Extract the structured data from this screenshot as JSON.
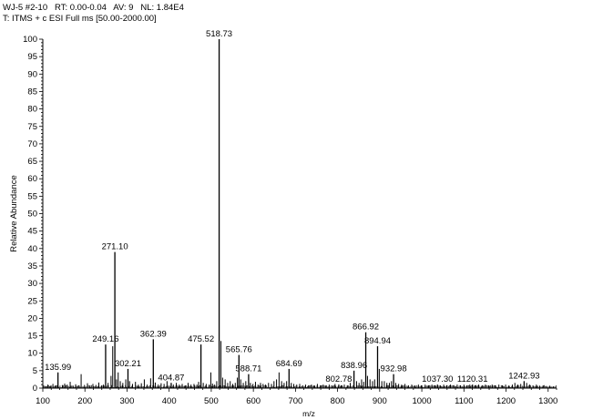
{
  "header": {
    "line1": "WJ-5 #2-10   RT: 0.00-0.04   AV: 9   NL: 1.84E4",
    "line2": "T: ITMS + c ESI Full ms [50.00-2000.00]"
  },
  "chart_data": {
    "type": "bar",
    "xlabel": "m/z",
    "ylabel": "Relative Abundance",
    "xlim": [
      100,
      1320
    ],
    "ylim": [
      0,
      100
    ],
    "xticks": [
      100,
      200,
      300,
      400,
      500,
      600,
      700,
      800,
      900,
      1000,
      1100,
      1200,
      1300
    ],
    "yticks": [
      0,
      5,
      10,
      15,
      20,
      25,
      30,
      35,
      40,
      45,
      50,
      55,
      60,
      65,
      70,
      75,
      80,
      85,
      90,
      95,
      100
    ],
    "labeled_peaks": [
      {
        "mz": 135.99,
        "label": "135.99",
        "intensity": 4.5
      },
      {
        "mz": 249.16,
        "label": "249.16",
        "intensity": 12.5
      },
      {
        "mz": 271.1,
        "label": "271.10",
        "intensity": 39.0
      },
      {
        "mz": 302.21,
        "label": "302.21",
        "intensity": 5.5
      },
      {
        "mz": 362.39,
        "label": "362.39",
        "intensity": 14.0
      },
      {
        "mz": 404.87,
        "label": "404.87",
        "intensity": 1.5
      },
      {
        "mz": 475.52,
        "label": "475.52",
        "intensity": 12.5
      },
      {
        "mz": 518.73,
        "label": "518.73",
        "intensity": 100.0
      },
      {
        "mz": 565.76,
        "label": "565.76",
        "intensity": 9.5
      },
      {
        "mz": 588.71,
        "label": "588.71",
        "intensity": 4.0
      },
      {
        "mz": 684.69,
        "label": "684.69",
        "intensity": 5.5
      },
      {
        "mz": 802.78,
        "label": "802.78",
        "intensity": 1.0
      },
      {
        "mz": 838.96,
        "label": "838.96",
        "intensity": 5.0
      },
      {
        "mz": 866.92,
        "label": "866.92",
        "intensity": 16.0
      },
      {
        "mz": 894.94,
        "label": "894.94",
        "intensity": 12.0
      },
      {
        "mz": 932.98,
        "label": "932.98",
        "intensity": 4.0
      },
      {
        "mz": 1037.3,
        "label": "1037.30",
        "intensity": 1.0
      },
      {
        "mz": 1120.31,
        "label": "1120.31",
        "intensity": 1.0
      },
      {
        "mz": 1242.93,
        "label": "1242.93",
        "intensity": 2.0
      }
    ],
    "unlabeled_peaks": [
      [
        107,
        0.6
      ],
      [
        112,
        1.0
      ],
      [
        118,
        0.7
      ],
      [
        124,
        1.2
      ],
      [
        130,
        0.8
      ],
      [
        147,
        0.9
      ],
      [
        152,
        1.3
      ],
      [
        158,
        1.0
      ],
      [
        165,
        1.8
      ],
      [
        172,
        0.7
      ],
      [
        178,
        1.1
      ],
      [
        186,
        0.8
      ],
      [
        191,
        4.0
      ],
      [
        199,
        0.9
      ],
      [
        206,
        1.4
      ],
      [
        212,
        0.8
      ],
      [
        219,
        1.2
      ],
      [
        226,
        0.9
      ],
      [
        233,
        1.6
      ],
      [
        240,
        0.8
      ],
      [
        244,
        1.0
      ],
      [
        255,
        1.5
      ],
      [
        262,
        3.5
      ],
      [
        266,
        12.0
      ],
      [
        275,
        2.5
      ],
      [
        279,
        4.5
      ],
      [
        284,
        2.0
      ],
      [
        290,
        1.5
      ],
      [
        297,
        2.5
      ],
      [
        306,
        2.0
      ],
      [
        313,
        1.2
      ],
      [
        320,
        1.8
      ],
      [
        327,
        1.0
      ],
      [
        334,
        1.4
      ],
      [
        341,
        2.5
      ],
      [
        348,
        1.0
      ],
      [
        356,
        2.8
      ],
      [
        367,
        1.6
      ],
      [
        374,
        1.0
      ],
      [
        381,
        1.4
      ],
      [
        388,
        1.2
      ],
      [
        395,
        2.0
      ],
      [
        410,
        1.0
      ],
      [
        417,
        1.5
      ],
      [
        424,
        1.0
      ],
      [
        431,
        1.2
      ],
      [
        438,
        0.8
      ],
      [
        445,
        1.5
      ],
      [
        452,
        1.0
      ],
      [
        459,
        1.2
      ],
      [
        466,
        1.0
      ],
      [
        470,
        1.8
      ],
      [
        481,
        1.5
      ],
      [
        488,
        1.2
      ],
      [
        495,
        1.0
      ],
      [
        499,
        4.5
      ],
      [
        503,
        1.3
      ],
      [
        508,
        1.0
      ],
      [
        513,
        2.0
      ],
      [
        523,
        13.5
      ],
      [
        527,
        3.0
      ],
      [
        533,
        2.5
      ],
      [
        539,
        1.5
      ],
      [
        545,
        2.0
      ],
      [
        551,
        1.2
      ],
      [
        557,
        1.5
      ],
      [
        562,
        3.0
      ],
      [
        570,
        2.5
      ],
      [
        576,
        1.5
      ],
      [
        582,
        2.0
      ],
      [
        593,
        1.5
      ],
      [
        599,
        1.2
      ],
      [
        605,
        1.8
      ],
      [
        611,
        1.0
      ],
      [
        617,
        1.5
      ],
      [
        623,
        1.2
      ],
      [
        629,
        1.0
      ],
      [
        636,
        1.5
      ],
      [
        643,
        1.2
      ],
      [
        649,
        2.0
      ],
      [
        655,
        2.5
      ],
      [
        661,
        4.5
      ],
      [
        667,
        2.0
      ],
      [
        673,
        1.5
      ],
      [
        679,
        2.0
      ],
      [
        690,
        1.5
      ],
      [
        696,
        1.2
      ],
      [
        703,
        1.0
      ],
      [
        710,
        1.2
      ],
      [
        717,
        0.8
      ],
      [
        724,
        1.0
      ],
      [
        731,
        0.8
      ],
      [
        738,
        1.0
      ],
      [
        745,
        0.8
      ],
      [
        752,
        1.2
      ],
      [
        759,
        0.8
      ],
      [
        766,
        1.0
      ],
      [
        773,
        0.8
      ],
      [
        780,
        1.0
      ],
      [
        787,
        0.8
      ],
      [
        794,
        1.2
      ],
      [
        809,
        0.8
      ],
      [
        816,
        1.0
      ],
      [
        823,
        0.8
      ],
      [
        830,
        1.5
      ],
      [
        845,
        2.0
      ],
      [
        851,
        1.5
      ],
      [
        857,
        2.5
      ],
      [
        862,
        1.8
      ],
      [
        871,
        3.5
      ],
      [
        877,
        2.5
      ],
      [
        883,
        2.0
      ],
      [
        888,
        2.5
      ],
      [
        899,
        5.5
      ],
      [
        905,
        2.0
      ],
      [
        911,
        2.0
      ],
      [
        917,
        1.5
      ],
      [
        923,
        1.5
      ],
      [
        928,
        2.0
      ],
      [
        938,
        1.5
      ],
      [
        945,
        1.2
      ],
      [
        952,
        1.0
      ],
      [
        960,
        1.2
      ],
      [
        968,
        0.8
      ],
      [
        976,
        1.0
      ],
      [
        984,
        0.8
      ],
      [
        992,
        1.0
      ],
      [
        1000,
        0.8
      ],
      [
        1008,
        1.0
      ],
      [
        1016,
        0.8
      ],
      [
        1024,
        1.0
      ],
      [
        1031,
        0.8
      ],
      [
        1044,
        0.8
      ],
      [
        1052,
        1.0
      ],
      [
        1060,
        0.8
      ],
      [
        1068,
        1.0
      ],
      [
        1076,
        0.8
      ],
      [
        1084,
        1.0
      ],
      [
        1092,
        0.8
      ],
      [
        1100,
        1.0
      ],
      [
        1108,
        0.8
      ],
      [
        1114,
        1.0
      ],
      [
        1127,
        0.8
      ],
      [
        1135,
        1.0
      ],
      [
        1143,
        0.8
      ],
      [
        1151,
        1.0
      ],
      [
        1159,
        0.8
      ],
      [
        1167,
        1.0
      ],
      [
        1175,
        0.8
      ],
      [
        1183,
        1.0
      ],
      [
        1191,
        0.8
      ],
      [
        1199,
        1.0
      ],
      [
        1207,
        0.8
      ],
      [
        1215,
        1.0
      ],
      [
        1221,
        1.5
      ],
      [
        1228,
        1.0
      ],
      [
        1235,
        1.2
      ],
      [
        1249,
        1.5
      ],
      [
        1256,
        1.0
      ],
      [
        1264,
        0.8
      ],
      [
        1272,
        1.0
      ],
      [
        1280,
        0.7
      ],
      [
        1288,
        0.8
      ],
      [
        1296,
        0.6
      ],
      [
        1304,
        0.7
      ],
      [
        1312,
        0.5
      ]
    ]
  }
}
